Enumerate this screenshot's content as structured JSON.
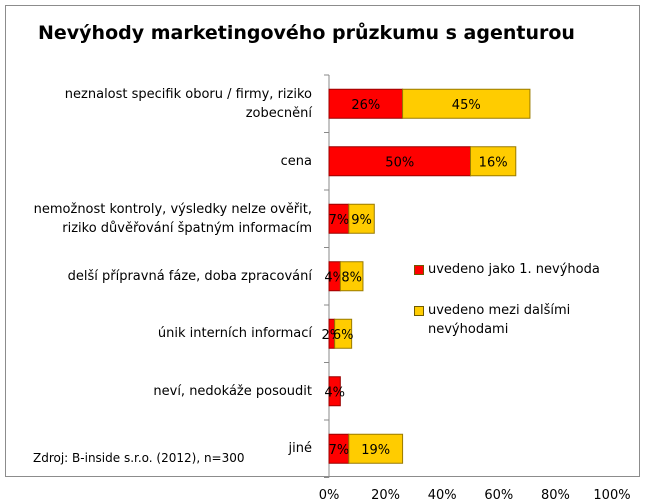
{
  "chart_data": {
    "type": "bar",
    "orientation": "horizontal",
    "stacked": true,
    "title": "Nevýhody marketingového průzkumu s agenturou",
    "categories": [
      "neznalost specifik oboru / firmy, riziko zobecnění",
      "cena",
      "nemožnost kontroly, výsledky nelze ověřit, riziko důvěřování špatným informacím",
      "delší přípravná fáze, doba zpracování",
      "únik interních informací",
      "neví, nedokáže posoudit",
      "jiné"
    ],
    "series": [
      {
        "name": "uvedeno jako 1. nevýhoda",
        "color": "#ff0000",
        "values": [
          26,
          50,
          7,
          4,
          2,
          4,
          7
        ]
      },
      {
        "name": "uvedeno mezi dalšími nevýhodami",
        "color": "#ffcc00",
        "values": [
          45,
          16,
          9,
          8,
          6,
          0,
          19
        ]
      }
    ],
    "x_ticks": [
      "0%",
      "20%",
      "40%",
      "60%",
      "80%",
      "100%"
    ],
    "xlim": [
      0,
      100
    ],
    "legend_position": "right",
    "source": "Zdroj: B-inside s.r.o. (2012), n=300"
  }
}
